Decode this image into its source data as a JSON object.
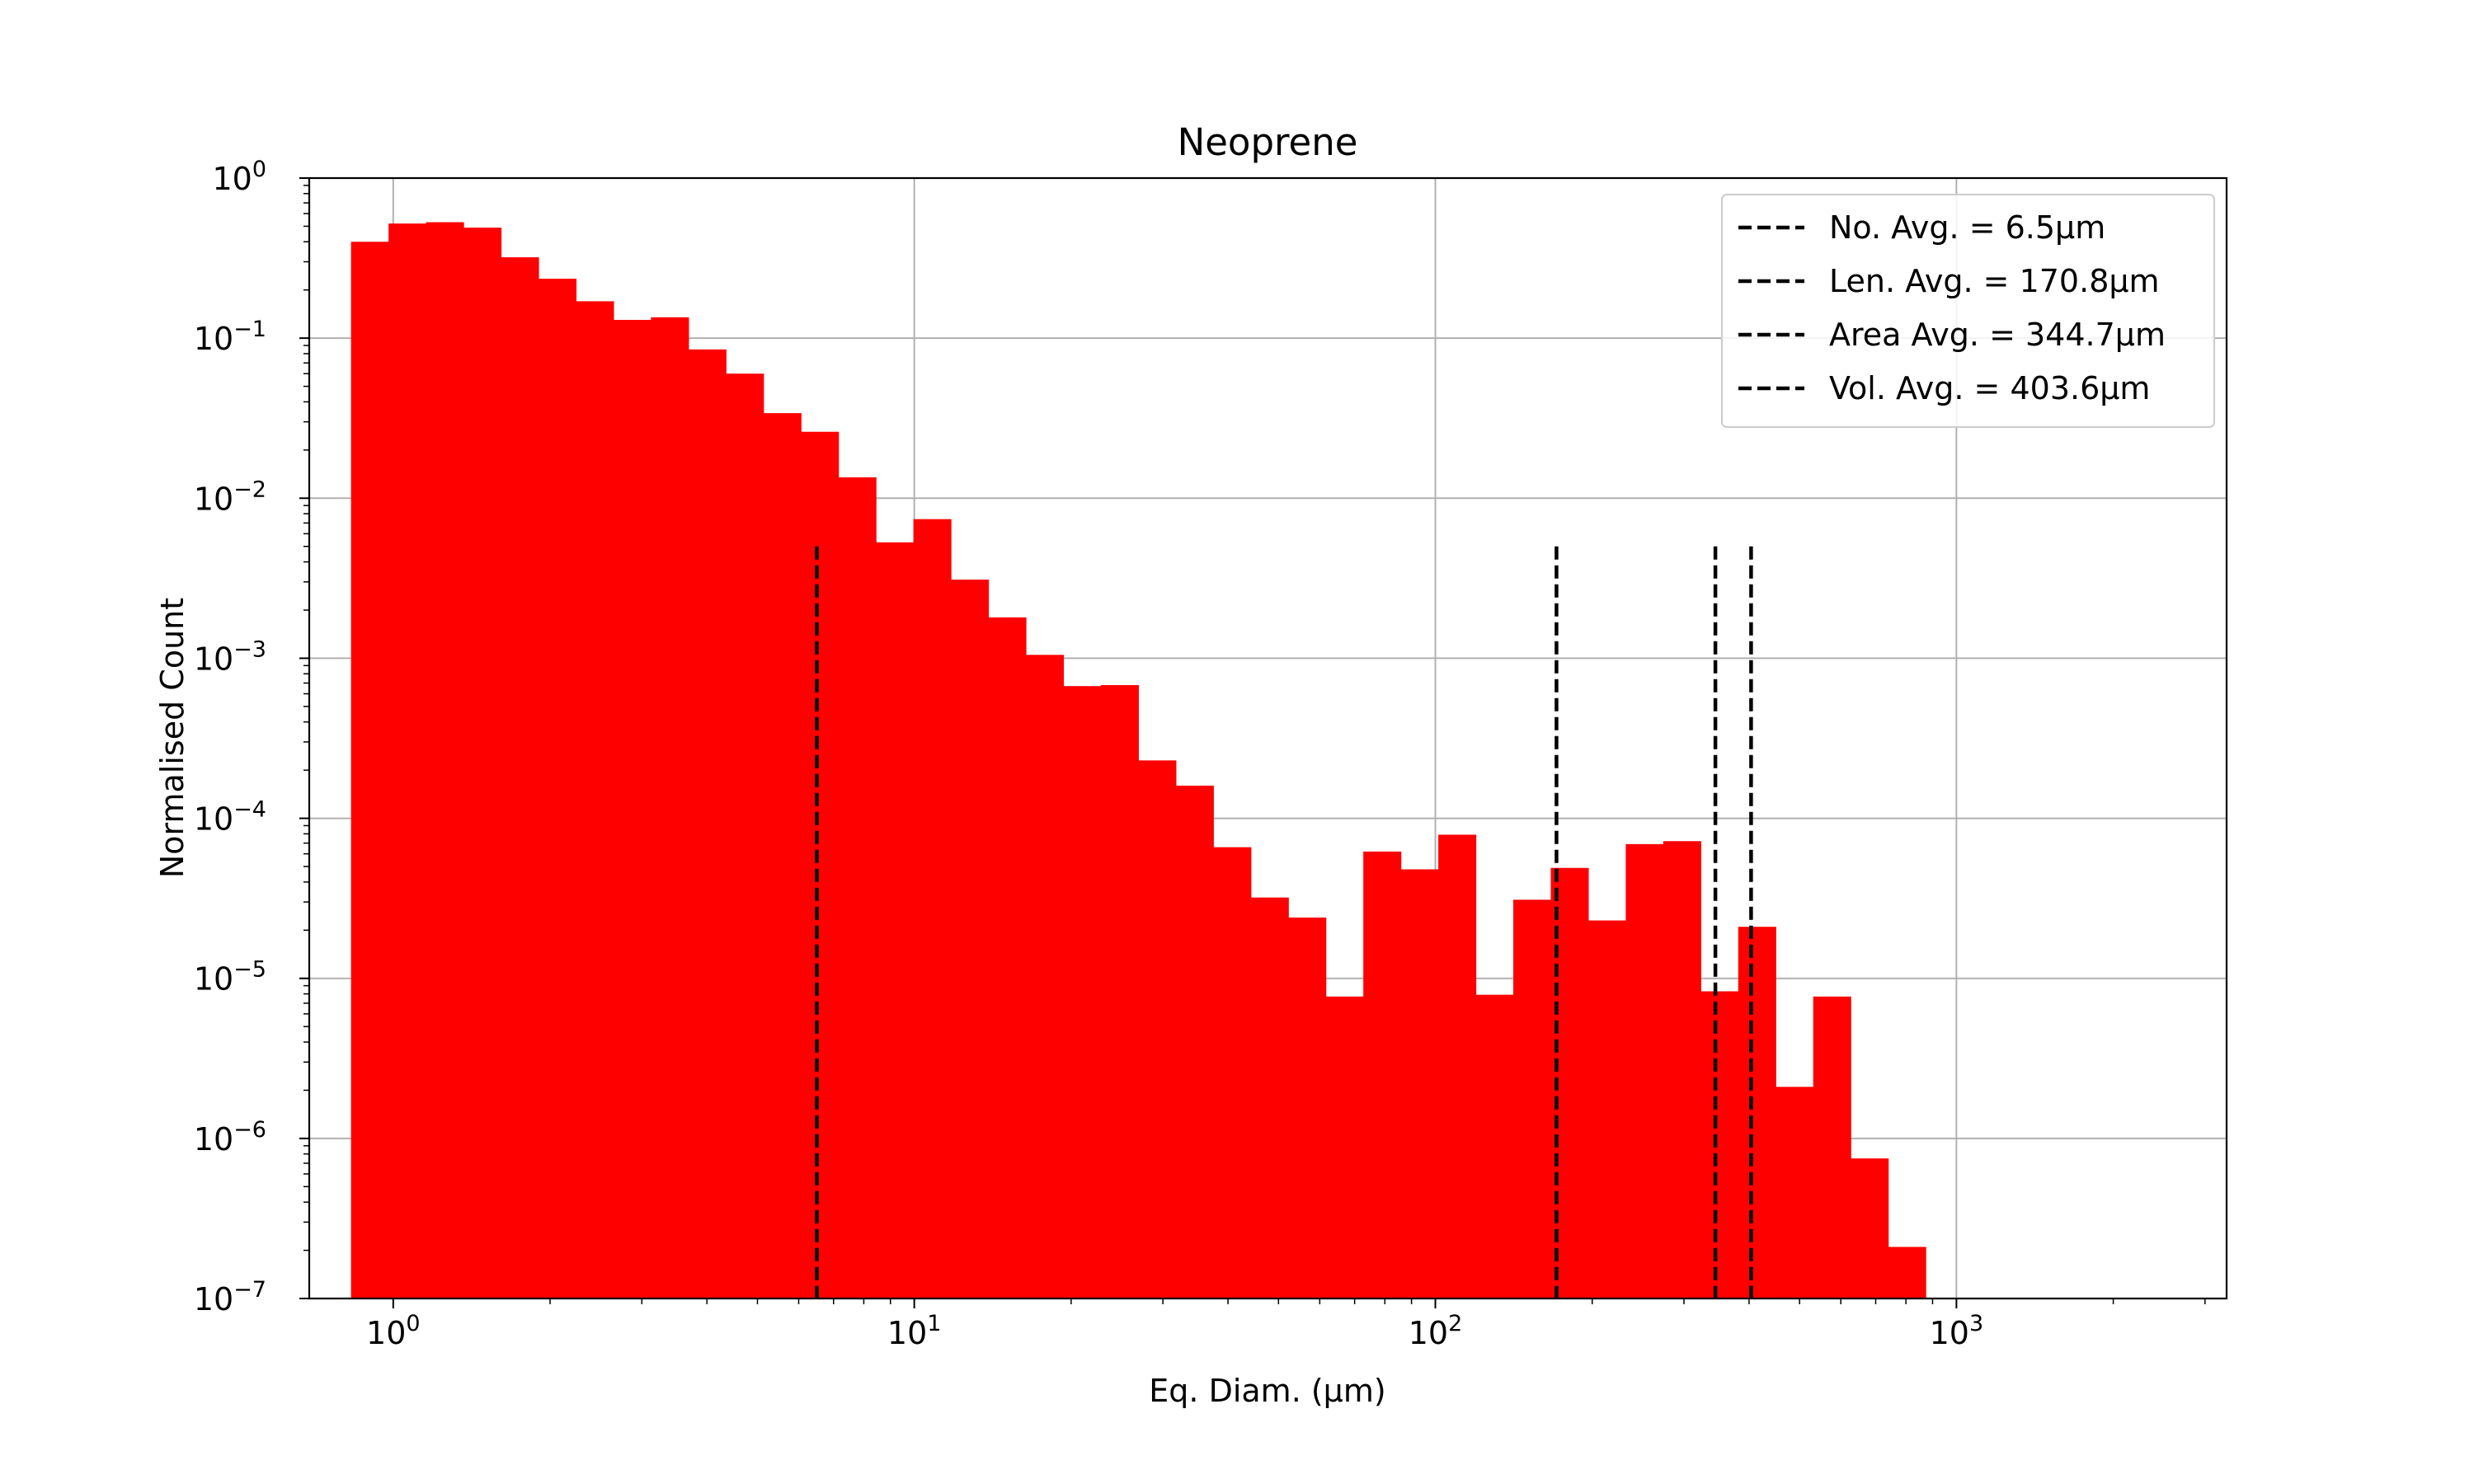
{
  "chart_data": {
    "type": "bar",
    "title": "Neoprene",
    "xlabel": "Eq. Diam. (µm)",
    "ylabel": "Normalised Count",
    "x_scale": "log",
    "y_scale": "log",
    "xlim": [
      0.69,
      3300
    ],
    "ylim": [
      1e-07,
      1
    ],
    "grid": true,
    "bar_color": "#ff0000",
    "x_major_ticks": [
      {
        "value": 1,
        "base": "10",
        "exp": "0"
      },
      {
        "value": 10,
        "base": "10",
        "exp": "1"
      },
      {
        "value": 100,
        "base": "10",
        "exp": "2"
      },
      {
        "value": 1000,
        "base": "10",
        "exp": "3"
      }
    ],
    "y_major_ticks": [
      {
        "value": 1e-07,
        "base": "10",
        "exp": "−7"
      },
      {
        "value": 1e-06,
        "base": "10",
        "exp": "−6"
      },
      {
        "value": 1e-05,
        "base": "10",
        "exp": "−5"
      },
      {
        "value": 0.0001,
        "base": "10",
        "exp": "−4"
      },
      {
        "value": 0.001,
        "base": "10",
        "exp": "−3"
      },
      {
        "value": 0.01,
        "base": "10",
        "exp": "−2"
      },
      {
        "value": 0.1,
        "base": "10",
        "exp": "−1"
      },
      {
        "value": 1,
        "base": "10",
        "exp": "0"
      }
    ],
    "bins": {
      "x_min": 0.83,
      "x_max": 873,
      "count": 42,
      "values": [
        0.4,
        0.52,
        0.53,
        0.49,
        0.32,
        0.235,
        0.17,
        0.13,
        0.135,
        0.085,
        0.06,
        0.034,
        0.026,
        0.0135,
        0.0053,
        0.0074,
        0.0031,
        0.0018,
        0.00105,
        0.00067,
        0.00068,
        0.00023,
        0.00016,
        6.6e-05,
        3.2e-05,
        2.4e-05,
        7.7e-06,
        6.2e-05,
        4.8e-05,
        7.9e-05,
        7.9e-06,
        3.1e-05,
        4.9e-05,
        2.3e-05,
        6.9e-05,
        7.2e-05,
        8.3e-06,
        2.1e-05,
        2.1e-06,
        7.7e-06,
        7.5e-07,
        2.1e-07
      ]
    },
    "vlines": {
      "y_top": 0.005,
      "color": "#000000",
      "style": "dashed",
      "items": [
        {
          "x": 6.5,
          "label": "No. Avg. = 6.5µm"
        },
        {
          "x": 170.8,
          "label": "Len. Avg. = 170.8µm"
        },
        {
          "x": 344.7,
          "label": "Area Avg. = 344.7µm"
        },
        {
          "x": 403.6,
          "label": "Vol. Avg. = 403.6µm"
        }
      ]
    },
    "legend": {
      "position": "top-right"
    }
  }
}
